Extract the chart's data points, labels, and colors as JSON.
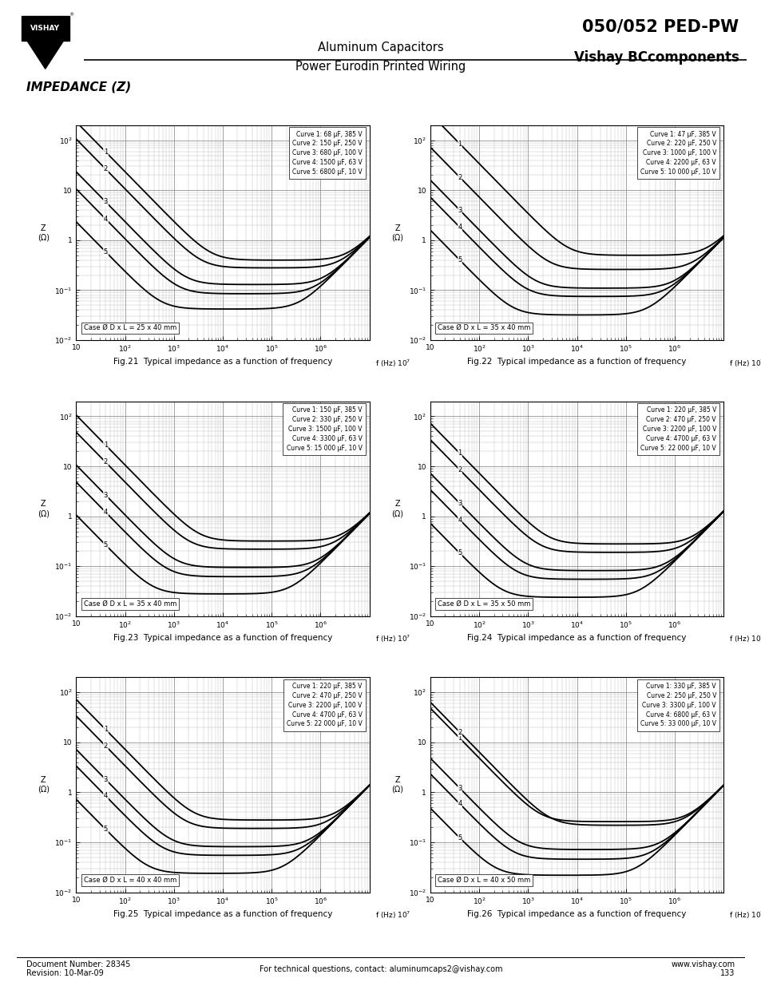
{
  "page_title": "050/052 PED-PW",
  "brand": "Vishay BCcomponents",
  "subtitle1": "Aluminum Capacitors",
  "subtitle2": "Power Eurodin Printed Wiring",
  "section_title": "IMPEDANCE (Z)",
  "doc_number": "Document Number: 28345",
  "revision": "Revision: 10-Mar-09",
  "contact_text": "For technical questions, contact: aluminumcaps2@vishay.com",
  "contact_email": "aluminumcaps2@vishay.com",
  "website": "www.vishay.com",
  "page_num": "133",
  "plots": [
    {
      "fig_num": "Fig.21",
      "caption": "Typical impedance as a function of frequency",
      "case": "Case Ø D x L = 25 x 40 mm",
      "curves": [
        {
          "label": "Curve 1: 68 μF, 385 V",
          "cap": 68,
          "esr": 0.4,
          "esl": 1.8e-08
        },
        {
          "label": "Curve 2: 150 μF, 250 V",
          "cap": 150,
          "esr": 0.28,
          "esl": 1.8e-08
        },
        {
          "label": "Curve 3: 680 μF, 100 V",
          "cap": 680,
          "esr": 0.13,
          "esl": 1.8e-08
        },
        {
          "label": "Curve 4: 1500 μF, 63 V",
          "cap": 1500,
          "esr": 0.085,
          "esl": 1.8e-08
        },
        {
          "label": "Curve 5: 6800 μF, 10 V",
          "cap": 6800,
          "esr": 0.042,
          "esl": 1.8e-08
        }
      ]
    },
    {
      "fig_num": "Fig.22",
      "caption": "Typical impedance as a function of frequency",
      "case": "Case Ø D x L = 35 x 40 mm",
      "curves": [
        {
          "label": "Curve 1: 47 μF, 385 V",
          "cap": 47,
          "esr": 0.5,
          "esl": 1.8e-08
        },
        {
          "label": "Curve 2: 220 μF, 250 V",
          "cap": 220,
          "esr": 0.26,
          "esl": 1.8e-08
        },
        {
          "label": "Curve 3: 1000 μF, 100 V",
          "cap": 1000,
          "esr": 0.11,
          "esl": 1.8e-08
        },
        {
          "label": "Curve 4: 2200 μF, 63 V",
          "cap": 2200,
          "esr": 0.075,
          "esl": 1.8e-08
        },
        {
          "label": "Curve 5: 10 000 μF, 10 V",
          "cap": 10000,
          "esr": 0.032,
          "esl": 1.8e-08
        }
      ]
    },
    {
      "fig_num": "Fig.23",
      "caption": "Typical impedance as a function of frequency",
      "case": "Case Ø D x L = 35 x 40 mm",
      "curves": [
        {
          "label": "Curve 1: 150 μF, 385 V",
          "cap": 150,
          "esr": 0.32,
          "esl": 1.8e-08
        },
        {
          "label": "Curve 2: 330 μF, 250 V",
          "cap": 330,
          "esr": 0.22,
          "esl": 1.8e-08
        },
        {
          "label": "Curve 3: 1500 μF, 100 V",
          "cap": 1500,
          "esr": 0.095,
          "esl": 1.8e-08
        },
        {
          "label": "Curve 4: 3300 μF, 63 V",
          "cap": 3300,
          "esr": 0.062,
          "esl": 1.8e-08
        },
        {
          "label": "Curve 5: 15 000 μF, 10 V",
          "cap": 15000,
          "esr": 0.028,
          "esl": 1.8e-08
        }
      ]
    },
    {
      "fig_num": "Fig.24",
      "caption": "Typical impedance as a function of frequency",
      "case": "Case Ø D x L = 35 x 50 mm",
      "curves": [
        {
          "label": "Curve 1: 220 μF, 385 V",
          "cap": 220,
          "esr": 0.28,
          "esl": 2e-08
        },
        {
          "label": "Curve 2: 470 μF, 250 V",
          "cap": 470,
          "esr": 0.19,
          "esl": 2e-08
        },
        {
          "label": "Curve 3: 2200 μF, 100 V",
          "cap": 2200,
          "esr": 0.082,
          "esl": 2e-08
        },
        {
          "label": "Curve 4: 4700 μF, 63 V",
          "cap": 4700,
          "esr": 0.055,
          "esl": 2e-08
        },
        {
          "label": "Curve 5: 22 000 μF, 10 V",
          "cap": 22000,
          "esr": 0.024,
          "esl": 2e-08
        }
      ]
    },
    {
      "fig_num": "Fig.25",
      "caption": "Typical impedance as a function of frequency",
      "case": "Case Ø D x L = 40 x 40 mm",
      "curves": [
        {
          "label": "Curve 1: 220 μF, 385 V",
          "cap": 220,
          "esr": 0.28,
          "esl": 2.2e-08
        },
        {
          "label": "Curve 2: 470 μF, 250 V",
          "cap": 470,
          "esr": 0.19,
          "esl": 2.2e-08
        },
        {
          "label": "Curve 3: 2200 μF, 100 V",
          "cap": 2200,
          "esr": 0.082,
          "esl": 2.2e-08
        },
        {
          "label": "Curve 4: 4700 μF, 63 V",
          "cap": 4700,
          "esr": 0.055,
          "esl": 2.2e-08
        },
        {
          "label": "Curve 5: 22 000 μF, 10 V",
          "cap": 22000,
          "esr": 0.024,
          "esl": 2.2e-08
        }
      ]
    },
    {
      "fig_num": "Fig.26",
      "caption": "Typical impedance as a function of frequency",
      "case": "Case Ø D x L = 40 x 50 mm",
      "curves": [
        {
          "label": "Curve 1: 330 μF, 385 V",
          "cap": 330,
          "esr": 0.26,
          "esl": 2.2e-08
        },
        {
          "label": "Curve 2: 250 μF, 250 V",
          "cap": 250,
          "esr": 0.22,
          "esl": 2.2e-08
        },
        {
          "label": "Curve 3: 3300 μF, 100 V",
          "cap": 3300,
          "esr": 0.072,
          "esl": 2.2e-08
        },
        {
          "label": "Curve 4: 6800 μF, 63 V",
          "cap": 6800,
          "esr": 0.046,
          "esl": 2.2e-08
        },
        {
          "label": "Curve 5: 33 000 μF, 10 V",
          "cap": 33000,
          "esr": 0.022,
          "esl": 2.2e-08
        }
      ]
    }
  ],
  "ylim_low": 0.01,
  "ylim_high": 200,
  "freq_min": 10,
  "freq_max": 10000000.0
}
